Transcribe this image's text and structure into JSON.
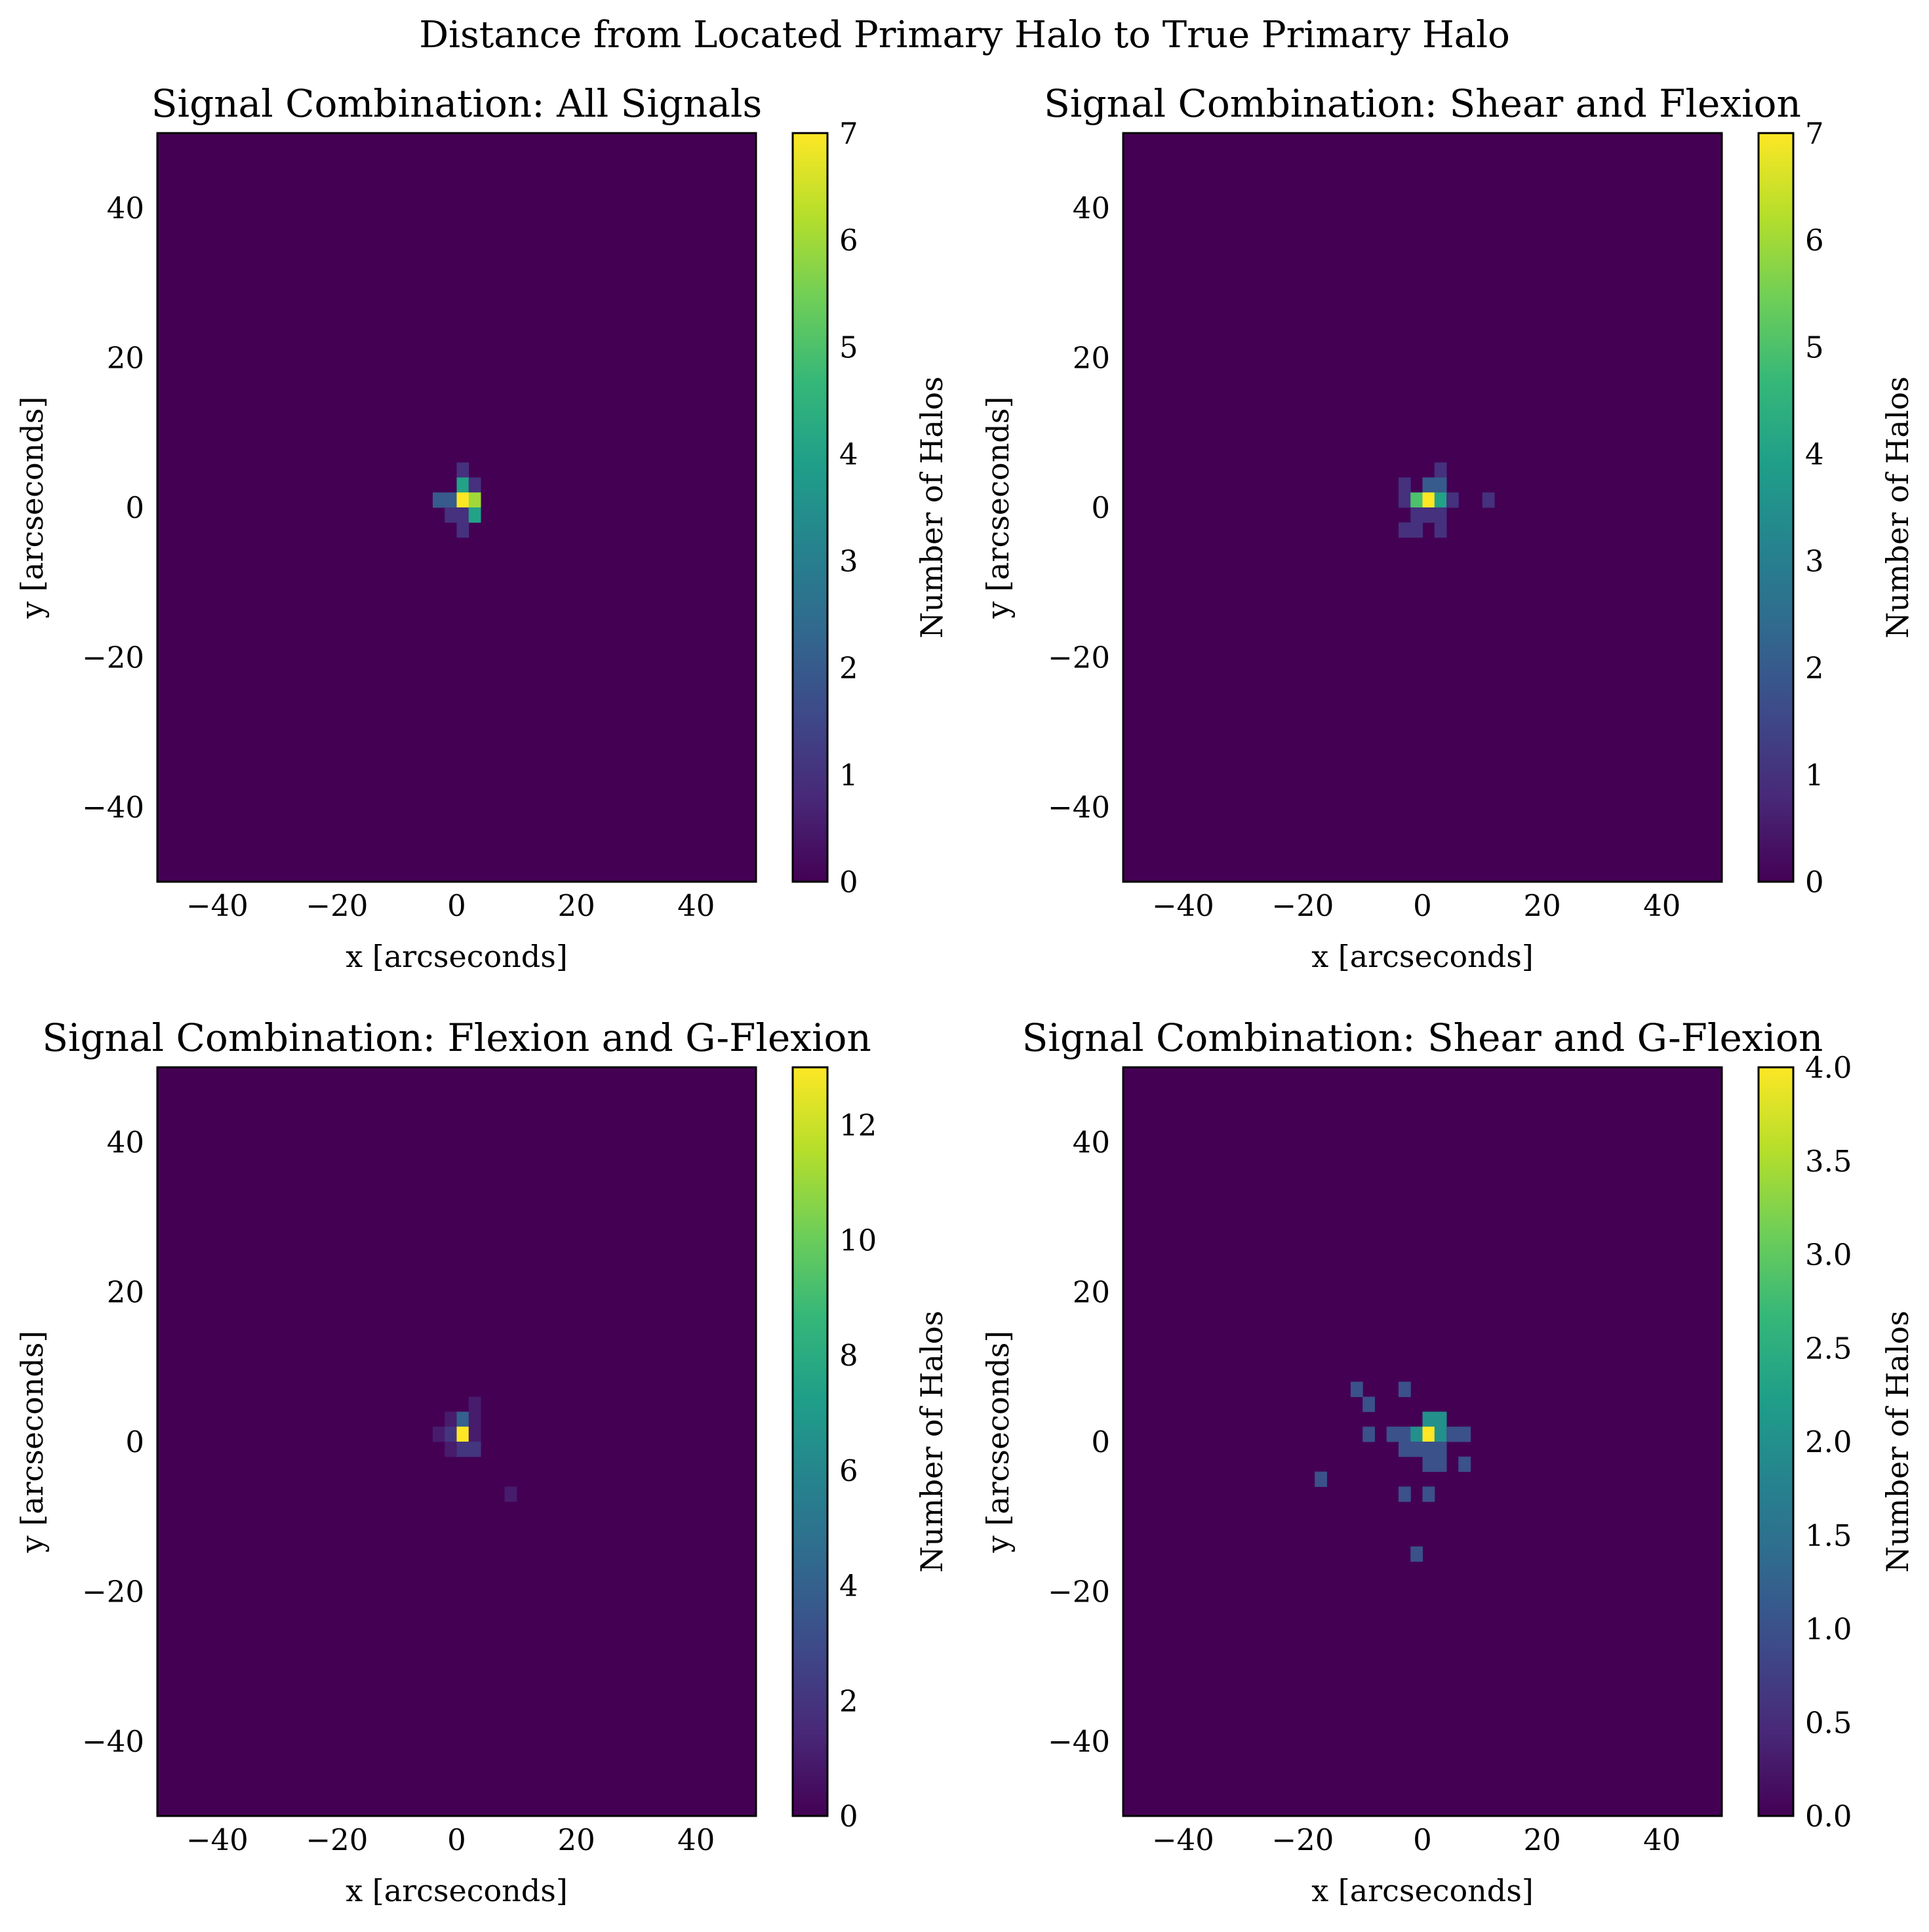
{
  "figure": {
    "suptitle": "Distance from Located Primary Halo to True Primary Halo"
  },
  "colormap": {
    "name": "viridis",
    "stops": [
      "#440154",
      "#482878",
      "#3e4989",
      "#31688e",
      "#26828e",
      "#1f9e89",
      "#35b779",
      "#6ece58",
      "#b5de2b",
      "#fde725"
    ]
  },
  "chart_data": [
    {
      "type": "heatmap",
      "title": "Signal Combination: All Signals",
      "xlabel": "x [arcseconds]",
      "ylabel": "y [arcseconds]",
      "xlim": [
        -50,
        50
      ],
      "ylim": [
        -50,
        50
      ],
      "bin_size": 2,
      "xticks": [
        -40,
        -20,
        0,
        20,
        40
      ],
      "yticks": [
        -40,
        -20,
        0,
        20,
        40
      ],
      "grid": false,
      "colorbar": {
        "label": "Number of Halos",
        "min": 0,
        "max": 7,
        "ticks": [
          "0",
          "1",
          "2",
          "3",
          "4",
          "5",
          "6",
          "7"
        ]
      },
      "bins": [
        {
          "x": 0,
          "y": 4,
          "count": 1
        },
        {
          "x": 0,
          "y": 2,
          "count": 4
        },
        {
          "x": 2,
          "y": 2,
          "count": 1
        },
        {
          "x": -4,
          "y": 0,
          "count": 2
        },
        {
          "x": -2,
          "y": 0,
          "count": 2
        },
        {
          "x": 0,
          "y": 0,
          "count": 7
        },
        {
          "x": 2,
          "y": 0,
          "count": 6
        },
        {
          "x": -2,
          "y": -2,
          "count": 1
        },
        {
          "x": 0,
          "y": -2,
          "count": 1
        },
        {
          "x": 2,
          "y": -2,
          "count": 4
        },
        {
          "x": 0,
          "y": -4,
          "count": 1
        }
      ]
    },
    {
      "type": "heatmap",
      "title": "Signal Combination: Shear and Flexion",
      "xlabel": "x [arcseconds]",
      "ylabel": "y [arcseconds]",
      "xlim": [
        -50,
        50
      ],
      "ylim": [
        -50,
        50
      ],
      "bin_size": 2,
      "xticks": [
        -40,
        -20,
        0,
        20,
        40
      ],
      "yticks": [
        -40,
        -20,
        0,
        20,
        40
      ],
      "grid": false,
      "colorbar": {
        "label": "Number of Halos",
        "min": 0,
        "max": 7,
        "ticks": [
          "0",
          "1",
          "2",
          "3",
          "4",
          "5",
          "6",
          "7"
        ]
      },
      "bins": [
        {
          "x": 2,
          "y": 4,
          "count": 1
        },
        {
          "x": -4,
          "y": 2,
          "count": 1
        },
        {
          "x": 0,
          "y": 2,
          "count": 2
        },
        {
          "x": 2,
          "y": 2,
          "count": 2
        },
        {
          "x": -4,
          "y": 0,
          "count": 1
        },
        {
          "x": -2,
          "y": 0,
          "count": 5
        },
        {
          "x": 0,
          "y": 0,
          "count": 7
        },
        {
          "x": 2,
          "y": 0,
          "count": 4
        },
        {
          "x": 4,
          "y": 0,
          "count": 1
        },
        {
          "x": 10,
          "y": 0,
          "count": 1
        },
        {
          "x": -2,
          "y": -2,
          "count": 1
        },
        {
          "x": 0,
          "y": -2,
          "count": 1
        },
        {
          "x": 2,
          "y": -2,
          "count": 1
        },
        {
          "x": -4,
          "y": -4,
          "count": 1
        },
        {
          "x": -2,
          "y": -4,
          "count": 1
        },
        {
          "x": 2,
          "y": -4,
          "count": 1
        }
      ]
    },
    {
      "type": "heatmap",
      "title": "Signal Combination: Flexion and G-Flexion",
      "xlabel": "x [arcseconds]",
      "ylabel": "y [arcseconds]",
      "xlim": [
        -50,
        50
      ],
      "ylim": [
        -50,
        50
      ],
      "bin_size": 2,
      "xticks": [
        -40,
        -20,
        0,
        20,
        40
      ],
      "yticks": [
        -40,
        -20,
        0,
        20,
        40
      ],
      "grid": false,
      "colorbar": {
        "label": "Number of Halos",
        "min": 0,
        "max": 13,
        "ticks": [
          "0",
          "2",
          "4",
          "6",
          "8",
          "10",
          "12"
        ]
      },
      "bins": [
        {
          "x": 2,
          "y": 4,
          "count": 1
        },
        {
          "x": -2,
          "y": 2,
          "count": 1
        },
        {
          "x": 0,
          "y": 2,
          "count": 4
        },
        {
          "x": 2,
          "y": 2,
          "count": 1
        },
        {
          "x": -4,
          "y": 0,
          "count": 1
        },
        {
          "x": -2,
          "y": 0,
          "count": 2
        },
        {
          "x": 0,
          "y": 0,
          "count": 13
        },
        {
          "x": 2,
          "y": 0,
          "count": 1
        },
        {
          "x": -2,
          "y": -2,
          "count": 1
        },
        {
          "x": 0,
          "y": -2,
          "count": 2
        },
        {
          "x": 2,
          "y": -2,
          "count": 2
        },
        {
          "x": 8,
          "y": -8,
          "count": 1
        }
      ]
    },
    {
      "type": "heatmap",
      "title": "Signal Combination: Shear and G-Flexion",
      "xlabel": "x [arcseconds]",
      "ylabel": "y [arcseconds]",
      "xlim": [
        -50,
        50
      ],
      "ylim": [
        -50,
        50
      ],
      "bin_size": 2,
      "xticks": [
        -40,
        -20,
        0,
        20,
        40
      ],
      "yticks": [
        -40,
        -20,
        0,
        20,
        40
      ],
      "grid": false,
      "colorbar": {
        "label": "Number of Halos",
        "min": 0,
        "max": 4,
        "ticks": [
          "0.0",
          "0.5",
          "1.0",
          "1.5",
          "2.0",
          "2.5",
          "3.0",
          "3.5",
          "4.0"
        ]
      },
      "bins": [
        {
          "x": -12,
          "y": 6,
          "count": 1
        },
        {
          "x": -4,
          "y": 6,
          "count": 1
        },
        {
          "x": -10,
          "y": 4,
          "count": 1
        },
        {
          "x": 0,
          "y": 2,
          "count": 2
        },
        {
          "x": 2,
          "y": 2,
          "count": 2
        },
        {
          "x": -10,
          "y": 0,
          "count": 1
        },
        {
          "x": -6,
          "y": 0,
          "count": 1
        },
        {
          "x": -4,
          "y": 0,
          "count": 1
        },
        {
          "x": -2,
          "y": 0,
          "count": 2
        },
        {
          "x": 0,
          "y": 0,
          "count": 4
        },
        {
          "x": 2,
          "y": 0,
          "count": 2
        },
        {
          "x": 4,
          "y": 0,
          "count": 1
        },
        {
          "x": 6,
          "y": 0,
          "count": 1
        },
        {
          "x": -4,
          "y": -2,
          "count": 1
        },
        {
          "x": -2,
          "y": -2,
          "count": 1
        },
        {
          "x": 0,
          "y": -2,
          "count": 1
        },
        {
          "x": 2,
          "y": -2,
          "count": 1
        },
        {
          "x": 0,
          "y": -4,
          "count": 1
        },
        {
          "x": 2,
          "y": -4,
          "count": 1
        },
        {
          "x": 6,
          "y": -4,
          "count": 1
        },
        {
          "x": -18,
          "y": -6,
          "count": 1
        },
        {
          "x": -4,
          "y": -8,
          "count": 1
        },
        {
          "x": 0,
          "y": -8,
          "count": 1
        },
        {
          "x": -2,
          "y": -16,
          "count": 1
        }
      ]
    }
  ]
}
